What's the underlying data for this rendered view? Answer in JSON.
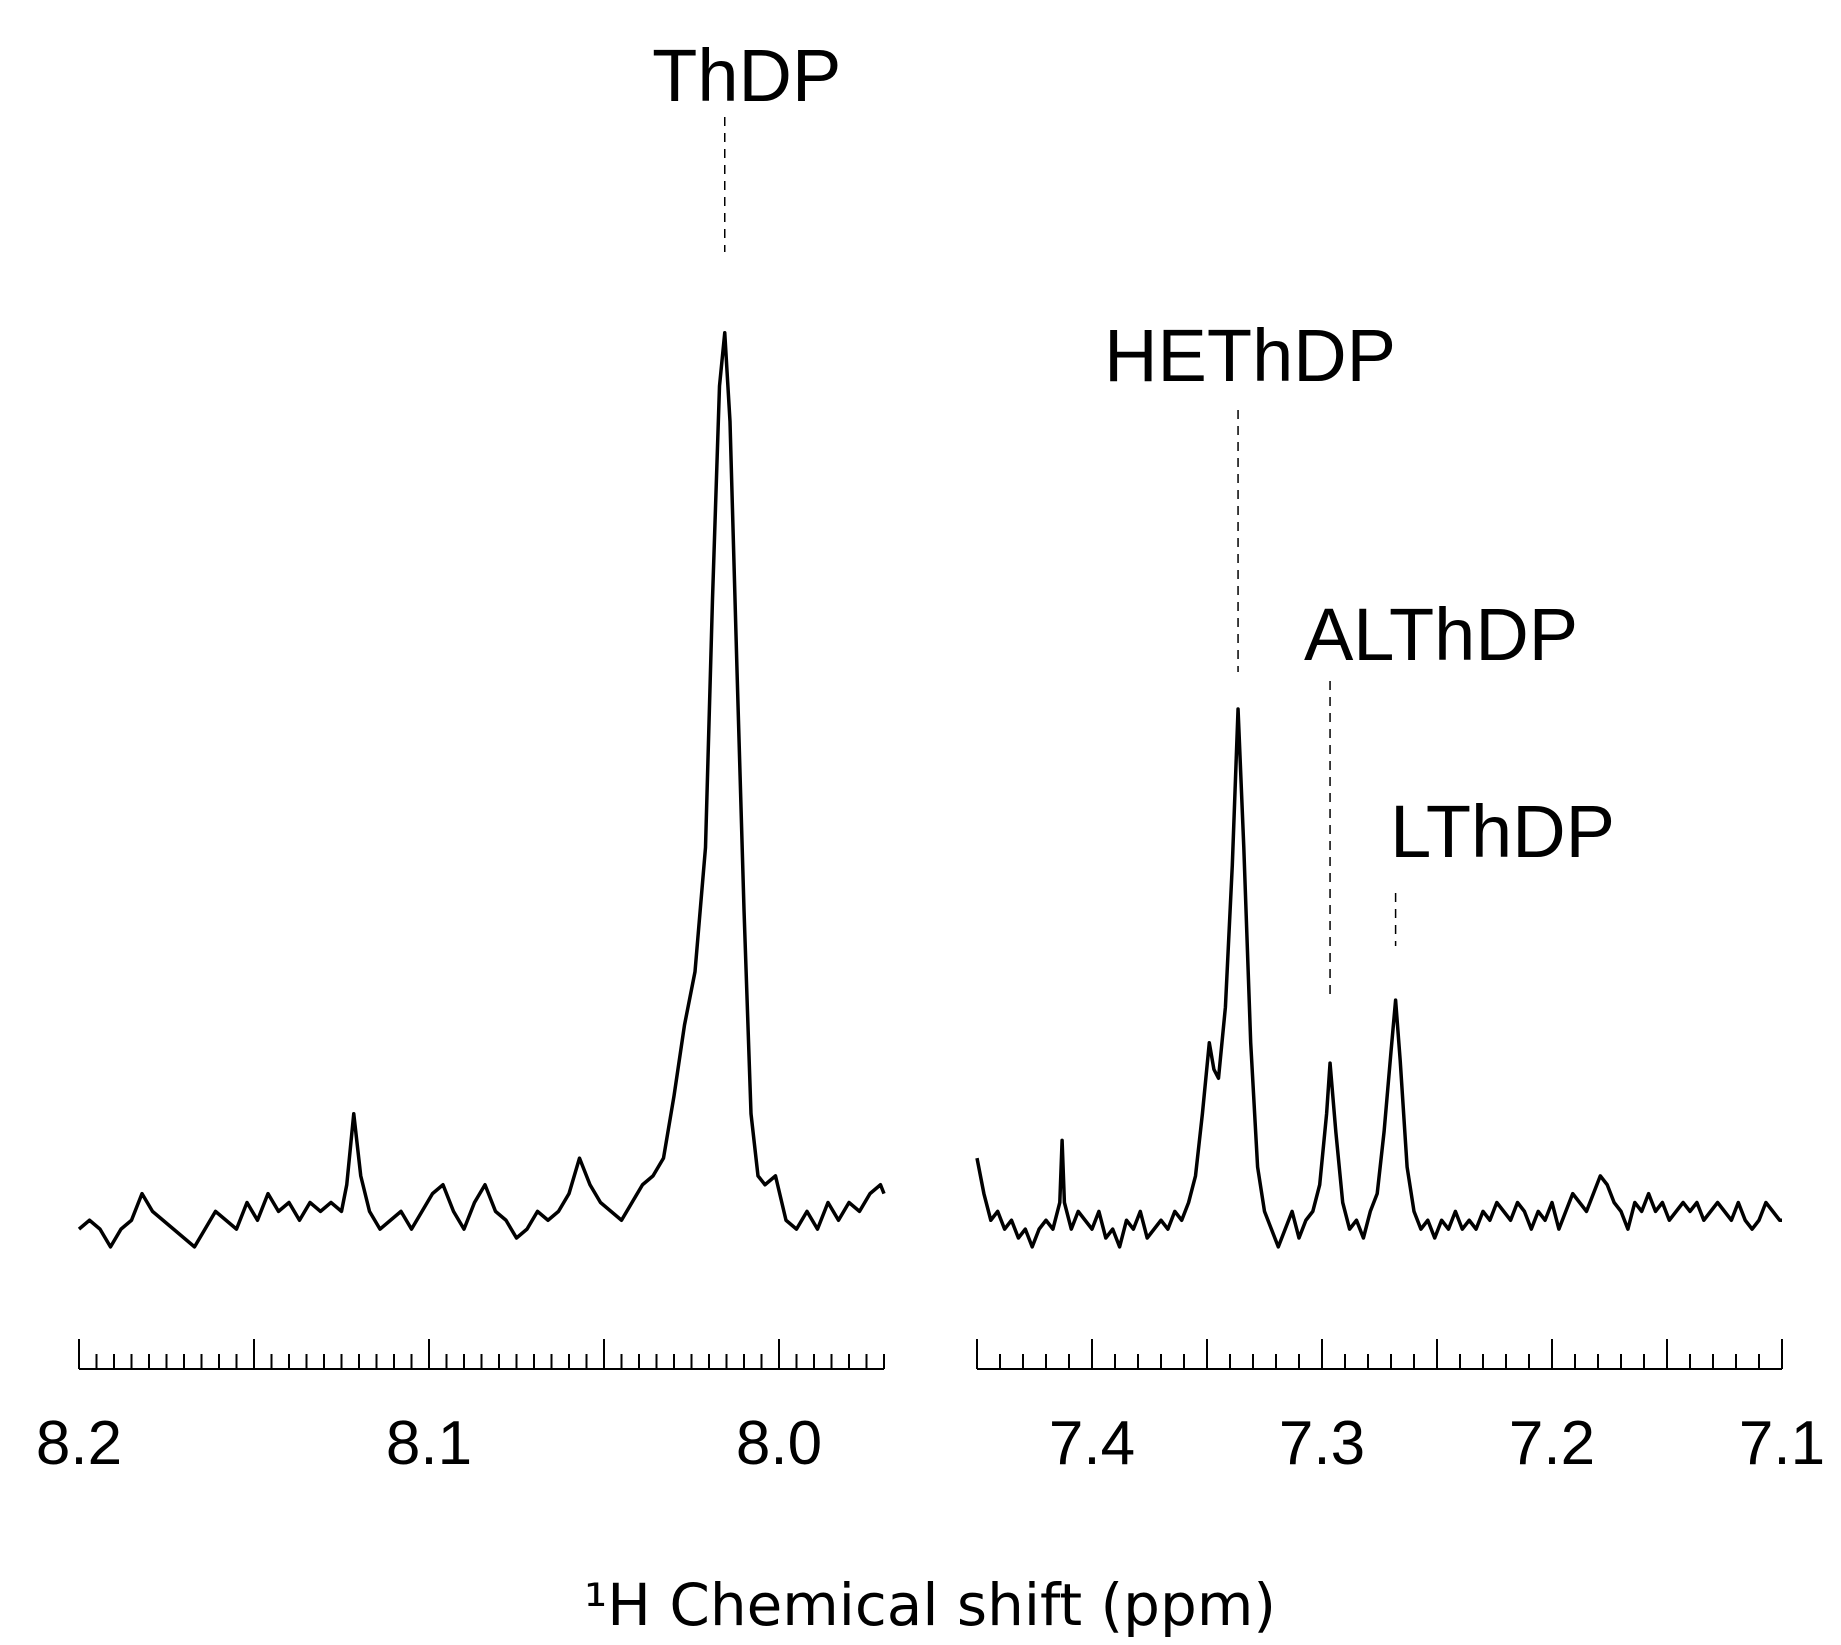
{
  "chart_data": [
    {
      "type": "line",
      "color": "#000000",
      "xlim": [
        8.2,
        7.97
      ],
      "ylim": [
        -10,
        110
      ],
      "xticks": [
        8.2,
        8.1,
        {
          "value": 8.0,
          "label": "8.0"
        }
      ],
      "minor_xticks": [
        8.195,
        8.19,
        8.185,
        8.18,
        8.175,
        8.17,
        8.165,
        8.16,
        8.155,
        8.15,
        8.145,
        8.14,
        8.135,
        8.13,
        8.125,
        8.12,
        8.115,
        8.11,
        8.105,
        8.095,
        8.09,
        8.085,
        8.08,
        8.075,
        8.07,
        8.065,
        8.06,
        8.055,
        8.05,
        8.045,
        8.04,
        8.035,
        8.03,
        8.025,
        8.02,
        8.015,
        8.01,
        8.005,
        7.995,
        7.99,
        7.985,
        7.98,
        7.975,
        7.97
      ],
      "xlabel": "¹H Chemical shift (ppm)",
      "annotations": [
        {
          "text": "ThDP",
          "x": 8.0155
        }
      ],
      "x": [
        8.2,
        8.197,
        8.194,
        8.191,
        8.188,
        8.185,
        8.182,
        8.179,
        8.176,
        8.173,
        8.17,
        8.167,
        8.164,
        8.161,
        8.158,
        8.155,
        8.152,
        8.149,
        8.146,
        8.143,
        8.14,
        8.137,
        8.134,
        8.131,
        8.128,
        8.125,
        8.1235,
        8.1215,
        8.1195,
        8.117,
        8.114,
        8.111,
        8.108,
        8.105,
        8.102,
        8.099,
        8.096,
        8.093,
        8.09,
        8.087,
        8.084,
        8.081,
        8.078,
        8.075,
        8.072,
        8.069,
        8.066,
        8.063,
        8.06,
        8.057,
        8.054,
        8.051,
        8.048,
        8.045,
        8.042,
        8.039,
        8.036,
        8.033,
        8.03,
        8.027,
        8.024,
        8.021,
        8.019,
        8.017,
        8.0155,
        8.014,
        8.012,
        8.01,
        8.008,
        8.006,
        8.004,
        8.001,
        7.998,
        7.995,
        7.992,
        7.989,
        7.986,
        7.983,
        7.98,
        7.977,
        7.974,
        7.971,
        7.97
      ],
      "values": [
        -1,
        0,
        -1,
        -3,
        -1,
        0,
        3,
        1,
        0,
        -1,
        -2,
        -3,
        -1,
        1,
        0,
        -1,
        2,
        0,
        3,
        1,
        2,
        0,
        2,
        1,
        2,
        1,
        4,
        12,
        5,
        1,
        -1,
        0,
        1,
        -1,
        1,
        3,
        4,
        1,
        -1,
        2,
        4,
        1,
        0,
        -2,
        -1,
        1,
        0,
        1,
        3,
        7,
        4,
        2,
        1,
        0,
        2,
        4,
        5,
        7,
        14,
        22,
        28,
        42,
        70,
        94,
        100,
        90,
        62,
        35,
        12,
        5,
        4,
        5,
        0,
        -1,
        1,
        -1,
        2,
        0,
        2,
        1,
        3,
        4,
        3
      ]
    },
    {
      "type": "line",
      "color": "#000000",
      "xlim": [
        7.45,
        7.1
      ],
      "ylim": [
        -10,
        110
      ],
      "xticks": [
        7.4,
        7.3,
        7.2,
        7.1
      ],
      "minor_xticks": [
        7.45,
        7.44,
        7.43,
        7.42,
        7.41,
        7.39,
        7.38,
        7.37,
        7.36,
        7.35,
        7.34,
        7.33,
        7.32,
        7.31,
        7.29,
        7.28,
        7.27,
        7.26,
        7.25,
        7.24,
        7.23,
        7.22,
        7.21,
        7.19,
        7.18,
        7.17,
        7.16,
        7.15,
        7.14,
        7.13,
        7.12,
        7.11
      ],
      "annotations": [
        {
          "text": "HEThDP",
          "x": 7.3365
        },
        {
          "text": "ALThDP",
          "x": 7.2965
        },
        {
          "text": "LThDP",
          "x": 7.268
        }
      ],
      "x": [
        7.45,
        7.447,
        7.444,
        7.441,
        7.438,
        7.435,
        7.432,
        7.429,
        7.426,
        7.423,
        7.42,
        7.417,
        7.414,
        7.413,
        7.412,
        7.409,
        7.406,
        7.403,
        7.4,
        7.397,
        7.394,
        7.391,
        7.388,
        7.385,
        7.382,
        7.379,
        7.376,
        7.373,
        7.37,
        7.367,
        7.364,
        7.361,
        7.358,
        7.355,
        7.352,
        7.349,
        7.347,
        7.345,
        7.342,
        7.339,
        7.3365,
        7.334,
        7.331,
        7.328,
        7.325,
        7.322,
        7.319,
        7.316,
        7.313,
        7.31,
        7.307,
        7.304,
        7.301,
        7.298,
        7.2965,
        7.294,
        7.291,
        7.288,
        7.285,
        7.282,
        7.279,
        7.276,
        7.273,
        7.27,
        7.268,
        7.266,
        7.263,
        7.26,
        7.257,
        7.254,
        7.251,
        7.248,
        7.245,
        7.242,
        7.239,
        7.236,
        7.233,
        7.23,
        7.227,
        7.224,
        7.221,
        7.218,
        7.215,
        7.212,
        7.209,
        7.206,
        7.203,
        7.2,
        7.197,
        7.194,
        7.191,
        7.188,
        7.185,
        7.182,
        7.179,
        7.176,
        7.173,
        7.17,
        7.167,
        7.164,
        7.161,
        7.158,
        7.155,
        7.152,
        7.149,
        7.146,
        7.143,
        7.14,
        7.137,
        7.134,
        7.131,
        7.128,
        7.125,
        7.122,
        7.119,
        7.116,
        7.113,
        7.11,
        7.107,
        7.104,
        7.101,
        7.1
      ],
      "values": [
        7,
        3,
        0,
        1,
        -1,
        0,
        -2,
        -1,
        -3,
        -1,
        0,
        -1,
        2,
        9,
        2,
        -1,
        1,
        0,
        -1,
        1,
        -2,
        -1,
        -3,
        0,
        -1,
        1,
        -2,
        -1,
        0,
        -1,
        1,
        0,
        2,
        5,
        12,
        20,
        17,
        16,
        24,
        40,
        57.6,
        42,
        20,
        6,
        1,
        -1,
        -3,
        -1,
        1,
        -2,
        0,
        1,
        4,
        12,
        17.7,
        10,
        2,
        -1,
        0,
        -2,
        1,
        3,
        10,
        19,
        24.8,
        18,
        6,
        1,
        -1,
        0,
        -2,
        0,
        -1,
        1,
        -1,
        0,
        -1,
        1,
        0,
        2,
        1,
        0,
        2,
        1,
        -1,
        1,
        0,
        2,
        -1,
        1,
        3,
        2,
        1,
        3,
        5,
        4,
        2,
        1,
        -1,
        2,
        1,
        3,
        1,
        2,
        0,
        1,
        2,
        1,
        2,
        0,
        1,
        2,
        1,
        0,
        2,
        0,
        -1,
        0,
        2,
        1,
        0,
        0
      ]
    }
  ]
}
